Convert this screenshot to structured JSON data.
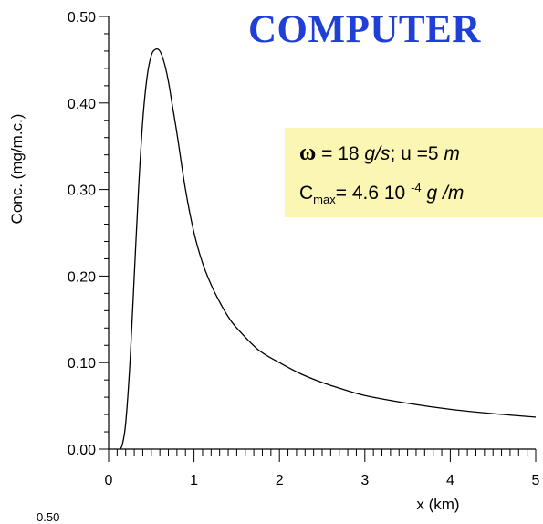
{
  "chart_data": {
    "type": "line",
    "title": "",
    "xlabel": "x  (km)",
    "ylabel": "Conc. (mg/m.c.)",
    "xlim": [
      0,
      5
    ],
    "ylim": [
      0,
      0.5
    ],
    "x_ticks": [
      "0",
      "1",
      "2",
      "3",
      "4",
      "5"
    ],
    "y_ticks": [
      "0.00",
      "0.10",
      "0.20",
      "0.30",
      "0.40",
      "0.50"
    ],
    "grid": false,
    "series": [
      {
        "x": [
          0.13,
          0.16,
          0.2,
          0.25,
          0.3,
          0.35,
          0.4,
          0.45,
          0.5,
          0.55,
          0.6,
          0.65,
          0.7,
          0.75,
          0.8,
          0.9,
          1.0,
          1.1,
          1.2,
          1.3,
          1.4,
          1.5,
          1.75,
          2.0,
          2.25,
          2.5,
          2.75,
          3.0,
          3.5,
          4.0,
          4.5,
          5.0
        ],
        "y": [
          0.0,
          0.005,
          0.03,
          0.1,
          0.2,
          0.3,
          0.38,
          0.43,
          0.455,
          0.462,
          0.46,
          0.447,
          0.425,
          0.395,
          0.365,
          0.3,
          0.25,
          0.215,
          0.19,
          0.17,
          0.153,
          0.14,
          0.115,
          0.1,
          0.087,
          0.077,
          0.069,
          0.062,
          0.053,
          0.046,
          0.041,
          0.037
        ]
      }
    ]
  },
  "banner": {
    "text": "COMPUTER"
  },
  "info_box": {
    "line1": {
      "omega": "ω",
      "part1": " = 18 ",
      "unit1": "g/s",
      "part2": "; u =5 ",
      "unit2": "m"
    },
    "line2": {
      "c": "C",
      "c_sub": "max",
      "part1": "= 4.6 10 ",
      "exp": "-4",
      "part2": " ",
      "unit": "g /m"
    }
  },
  "partial_label": "0.50"
}
